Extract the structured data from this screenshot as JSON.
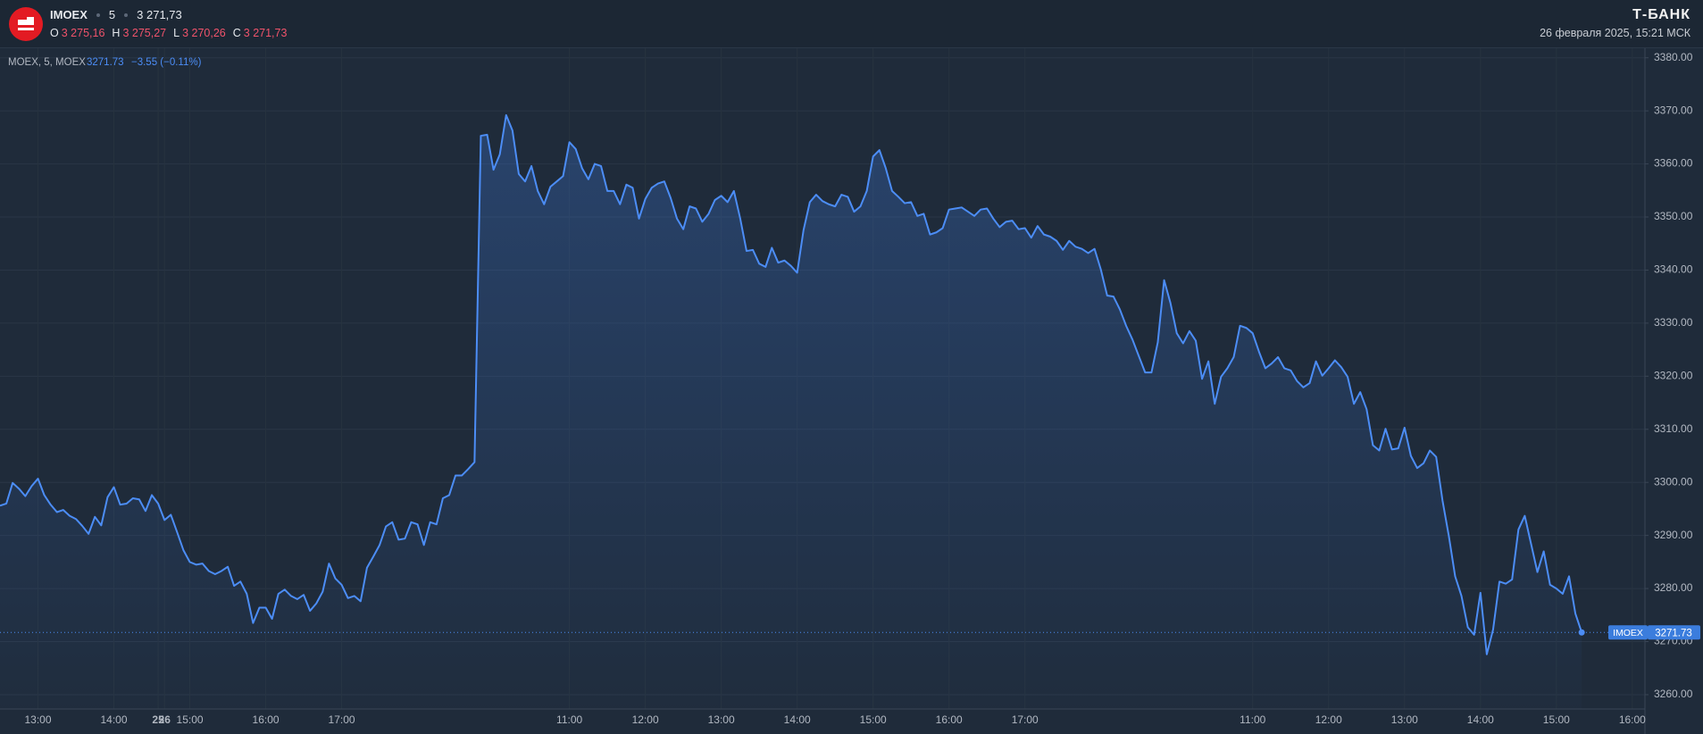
{
  "header": {
    "symbol": "IMOEX",
    "interval": "5",
    "price": "3 271,73",
    "ohlc": [
      {
        "label": "O",
        "value": "3 275,16"
      },
      {
        "label": "H",
        "value": "3 275,27"
      },
      {
        "label": "L",
        "value": "3 270,26"
      },
      {
        "label": "C",
        "value": "3 271,73"
      }
    ],
    "brand": "Т-БАНК",
    "datetime": "26 февраля 2025, 15:21 МСК"
  },
  "chart_data": {
    "type": "line",
    "legend_name": "MOEX, 5, MOEX",
    "change": "−3.55 (−0.11%)",
    "series": [
      {
        "name": "IMOEX",
        "color": "#4c8df6",
        "values": [
          3295.6,
          3296.0,
          3299.9,
          3298.8,
          3297.4,
          3299.3,
          3300.7,
          3297.6,
          3295.8,
          3294.4,
          3294.8,
          3293.7,
          3293.1,
          3291.8,
          3290.3,
          3293.5,
          3291.9,
          3297.2,
          3299.1,
          3295.8,
          3296.0,
          3297.0,
          3296.8,
          3294.6,
          3297.6,
          3296.0,
          3292.9,
          3293.9,
          3290.6,
          3287.2,
          3285.0,
          3284.5,
          3284.7,
          3283.3,
          3282.7,
          3283.3,
          3284.1,
          3280.5,
          3281.3,
          3279.0,
          3273.5,
          3276.4,
          3276.4,
          3274.3,
          3279.0,
          3279.8,
          3278.6,
          3278.0,
          3278.8,
          3275.8,
          3277.2,
          3279.4,
          3284.7,
          3281.9,
          3280.7,
          3278.2,
          3278.6,
          3277.6,
          3283.9,
          3286.0,
          3288.2,
          3291.7,
          3292.5,
          3289.2,
          3289.4,
          3292.5,
          3292.1,
          3288.2,
          3292.5,
          3292.1,
          3297.0,
          3297.6,
          3301.3,
          3301.3,
          3302.5,
          3303.8,
          3365.3,
          3365.5,
          3358.9,
          3361.8,
          3369.2,
          3366.3,
          3358.1,
          3356.7,
          3359.6,
          3354.9,
          3352.4,
          3355.7,
          3356.7,
          3357.7,
          3364.1,
          3362.8,
          3359.2,
          3357.1,
          3360.0,
          3359.6,
          3354.9,
          3354.9,
          3352.4,
          3356.1,
          3355.5,
          3349.7,
          3353.4,
          3355.5,
          3356.3,
          3356.7,
          3353.6,
          3349.7,
          3347.7,
          3352.0,
          3351.6,
          3349.1,
          3350.6,
          3353.2,
          3354.0,
          3352.8,
          3354.9,
          3349.7,
          3343.6,
          3343.8,
          3341.2,
          3340.6,
          3344.2,
          3341.4,
          3341.8,
          3340.8,
          3339.5,
          3347.5,
          3352.8,
          3354.2,
          3353.0,
          3352.4,
          3352.0,
          3354.2,
          3353.8,
          3351.0,
          3352.0,
          3354.9,
          3361.4,
          3362.6,
          3359.2,
          3354.9,
          3353.8,
          3352.6,
          3352.8,
          3350.2,
          3350.6,
          3346.7,
          3347.1,
          3347.9,
          3351.4,
          3351.6,
          3351.8,
          3351.0,
          3350.2,
          3351.4,
          3351.6,
          3349.7,
          3348.1,
          3349.1,
          3349.3,
          3347.7,
          3347.9,
          3346.1,
          3348.3,
          3346.7,
          3346.3,
          3345.5,
          3343.8,
          3345.5,
          3344.4,
          3344.0,
          3343.2,
          3344.0,
          3340.1,
          3335.2,
          3335.0,
          3332.6,
          3329.5,
          3326.9,
          3323.8,
          3320.7,
          3320.7,
          3326.4,
          3338.1,
          3333.8,
          3328.1,
          3326.2,
          3328.5,
          3326.7,
          3319.5,
          3322.8,
          3314.8,
          3319.9,
          3321.5,
          3323.6,
          3329.5,
          3329.1,
          3328.1,
          3324.6,
          3321.5,
          3322.4,
          3323.6,
          3321.5,
          3321.1,
          3319.1,
          3317.9,
          3318.7,
          3322.8,
          3320.1,
          3321.5,
          3323.0,
          3321.7,
          3319.9,
          3314.8,
          3317.0,
          3313.8,
          3307.0,
          3306.0,
          3310.1,
          3306.2,
          3306.4,
          3310.3,
          3305.0,
          3302.7,
          3303.6,
          3306.0,
          3304.8,
          3296.6,
          3289.9,
          3282.3,
          3278.6,
          3272.7,
          3271.3,
          3279.2,
          3267.6,
          3272.3,
          3281.3,
          3280.9,
          3281.7,
          3291.1,
          3293.7,
          3288.4,
          3283.1,
          3287.0,
          3280.7,
          3280.0,
          3279.0,
          3282.3,
          3275.3,
          3271.73
        ]
      }
    ],
    "xlim": [
      0,
      260
    ],
    "xticks": [
      {
        "value": 6,
        "label": "13:00"
      },
      {
        "value": 18,
        "label": "14:00"
      },
      {
        "value": 30,
        "label": "15:00"
      },
      {
        "value": 42,
        "label": "16:00"
      },
      {
        "value": 54,
        "label": "17:00"
      },
      25,
      {
        "value": 90,
        "label": "11:00"
      },
      {
        "value": 102,
        "label": "12:00"
      },
      {
        "value": 114,
        "label": "13:00"
      },
      {
        "value": 126,
        "label": "14:00"
      },
      {
        "value": 138,
        "label": "15:00"
      },
      {
        "value": 150,
        "label": "16:00"
      },
      {
        "value": 162,
        "label": "17:00"
      },
      26,
      {
        "value": 198,
        "label": "11:00"
      },
      {
        "value": 210,
        "label": "12:00"
      },
      {
        "value": 222,
        "label": "13:00"
      },
      {
        "value": 234,
        "label": "14:00"
      },
      {
        "value": 246,
        "label": "15:00"
      },
      {
        "value": 258,
        "label": "16:00"
      }
    ],
    "ylim": [
      3257.3,
      3381.8
    ],
    "yticks": [
      {
        "value": 3260,
        "label": "3260.00"
      },
      {
        "value": 3270,
        "label": "3270.00"
      },
      {
        "value": 3280,
        "label": "3280.00"
      },
      {
        "value": 3290,
        "label": "3290.00"
      },
      {
        "value": 3300,
        "label": "3300.00"
      },
      {
        "value": 3310,
        "label": "3310.00"
      },
      {
        "value": 3320,
        "label": "3320.00"
      },
      {
        "value": 3330,
        "label": "3330.00"
      },
      {
        "value": 3340,
        "label": "3340.00"
      },
      {
        "value": 3350,
        "label": "3350.00"
      },
      {
        "value": 3360,
        "label": "3360.00"
      },
      {
        "value": 3370,
        "label": "3370.00"
      },
      {
        "value": 3380,
        "label": "3380.00"
      }
    ],
    "grid": true,
    "area": true
  }
}
